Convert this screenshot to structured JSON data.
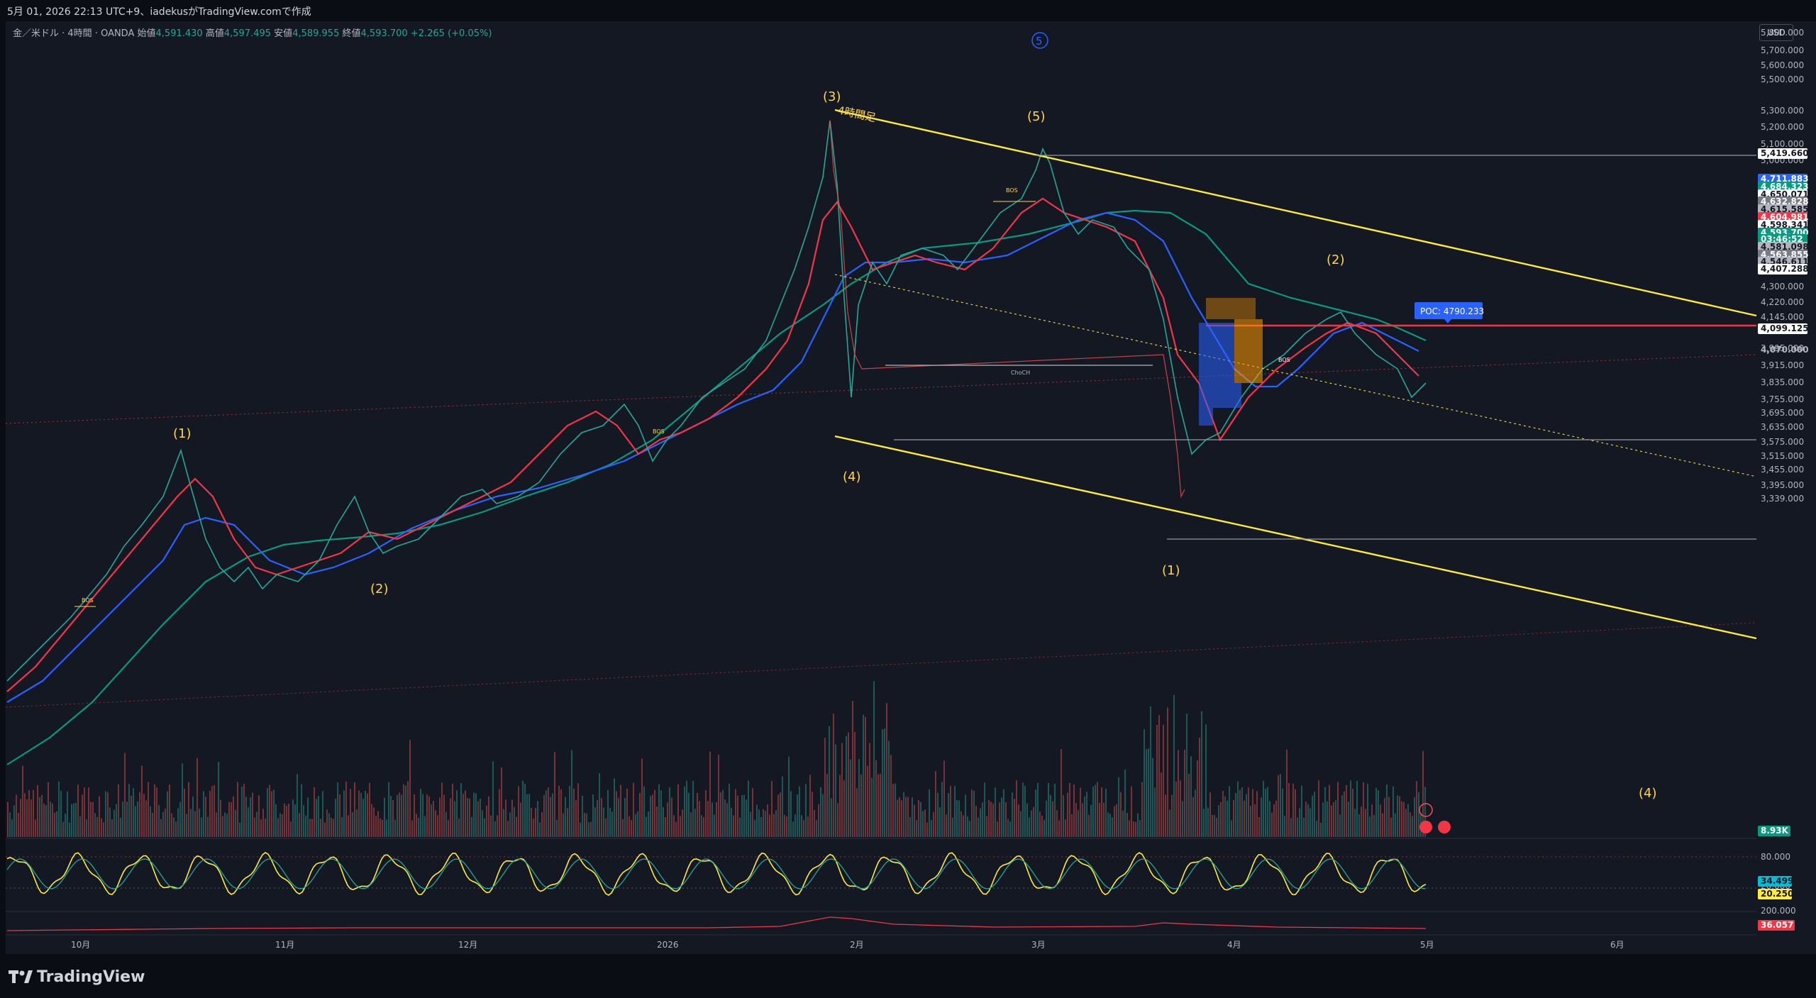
{
  "header": {
    "caption": "5月 01, 2026 22:13 UTC+9、iadekusがTradingView.comで作成"
  },
  "legend": {
    "symbol": "金／米ドル · 4時間 · OANDA",
    "open_label": "始値",
    "open_value": "4,591.430",
    "high_label": "高値",
    "high_value": "4,597.495",
    "low_label": "安値",
    "low_value": "4,589.955",
    "close_label": "終値",
    "close_value": "4,593.700",
    "change": "+2.265 (+0.05%)"
  },
  "currency_button": "USD",
  "price_axis": {
    "ticks": [
      "5,800.000",
      "5,700.000",
      "5,600.000",
      "5,500.000",
      "5,300.000",
      "5,200.000",
      "5,100.000",
      "5,000.000",
      "4,300.000",
      "4,220.000",
      "4,145.000",
      "3,995.000",
      "3,915.000",
      "3,835.000",
      "3,755.000",
      "3,695.000",
      "3,635.000",
      "3,575.000",
      "3,515.000",
      "3,455.000",
      "3,395.000",
      "3,339.000"
    ],
    "tags": [
      {
        "text": "5,419.660",
        "bg": "#ffffff",
        "fg": "#131722"
      },
      {
        "text": "4,711.883",
        "bg": "#2962ff",
        "fg": "#ffffff"
      },
      {
        "text": "4,684.323",
        "bg": "#089981",
        "fg": "#ffffff"
      },
      {
        "text": "4,650.071",
        "bg": "#ffffff",
        "fg": "#131722"
      },
      {
        "text": "4,632.828",
        "bg": "#787b86",
        "fg": "#ffffff"
      },
      {
        "text": "4,615.585",
        "bg": "#b2b5be",
        "fg": "#131722"
      },
      {
        "text": "4,604.981",
        "bg": "#f23645",
        "fg": "#ffffff"
      },
      {
        "text": "4,598.341",
        "bg": "#ffffff",
        "fg": "#131722"
      },
      {
        "text": "4,593.700",
        "bg": "#089981",
        "fg": "#ffffff"
      },
      {
        "text": "03:46:52",
        "bg": "#089981",
        "fg": "#ffffff"
      },
      {
        "text": "4,581.098",
        "bg": "#b2b5be",
        "fg": "#131722"
      },
      {
        "text": "4,563.855",
        "bg": "#787b86",
        "fg": "#ffffff"
      },
      {
        "text": "4,546.611",
        "bg": "#b2b5be",
        "fg": "#131722"
      },
      {
        "text": "4,407.288",
        "bg": "#ffffff",
        "fg": "#131722"
      },
      {
        "text": "4,099.125",
        "bg": "#ffffff",
        "fg": "#131722"
      },
      {
        "text": "4,070.000",
        "bg": "none",
        "fg": "#b2b5be"
      }
    ],
    "volume_tag": "8.93K",
    "osc_ticks": [
      "80.000",
      "20.000"
    ],
    "osc_tags": [
      {
        "text": "34.499",
        "bg": "#00bcd4",
        "fg": "#131722"
      },
      {
        "text": "20.250",
        "bg": "#ffeb3b",
        "fg": "#131722"
      }
    ],
    "lower_tick": "200.000",
    "lower_tag": {
      "text": "36.057",
      "bg": "#f23645",
      "fg": "#ffffff"
    }
  },
  "time_axis": [
    "10月",
    "11月",
    "12月",
    "2026",
    "2月",
    "3月",
    "4月",
    "5月",
    "6月"
  ],
  "annotations": {
    "elliott_labels": [
      "(1)",
      "(2)",
      "(3)",
      "(4)",
      "(5)",
      "(2)",
      "(1)",
      "(4)"
    ],
    "circled_label": "5",
    "timeframe_note": "4時間足",
    "bos_label": "BOS",
    "choch_label": "ChoCH",
    "poc_label": "POC: 4790.233"
  },
  "footer": {
    "brand": "TradingView"
  },
  "colors": {
    "background": "#141823",
    "ma_red": "#f23645",
    "ma_blue": "#2962ff",
    "ma_green": "#089981",
    "channel": "#ffeb3b",
    "label_yellow": "#ffd54f"
  }
}
